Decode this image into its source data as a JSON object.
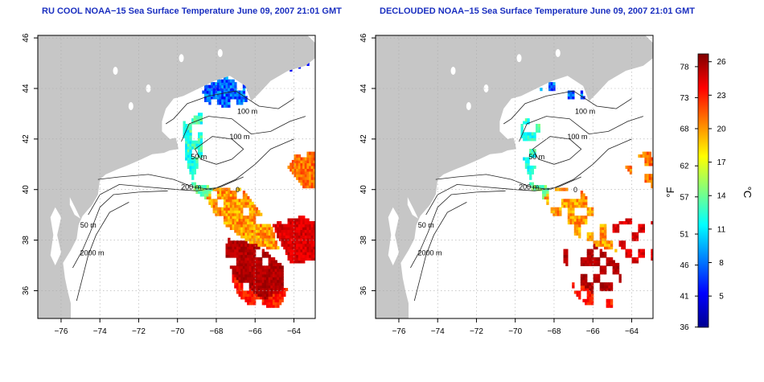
{
  "panels": [
    {
      "title": "RU COOL NOAA−15 Sea Surface Temperature June 09, 2007 21:01 GMT",
      "variant": "all-clouds"
    },
    {
      "title": "DECLOUDED NOAA−15 Sea Surface Temperature June 09, 2007 21:01 GMT",
      "variant": "declouded"
    }
  ],
  "axes": {
    "lon_ticks": [
      "−76",
      "−74",
      "−72",
      "−70",
      "−68",
      "−66",
      "−64"
    ],
    "lon_values": [
      -76,
      -74,
      -72,
      -70,
      -68,
      -66,
      -64
    ],
    "lon_range": [
      -77.2,
      -62.9
    ],
    "lat_ticks": [
      "36",
      "38",
      "40",
      "42",
      "44",
      "46"
    ],
    "lat_values": [
      36,
      38,
      40,
      42,
      44,
      46
    ],
    "lat_range": [
      34.9,
      46.1
    ],
    "grid": "dotted"
  },
  "contour_labels": [
    {
      "text": "100 m",
      "lon": -66.4,
      "lat": 43.0
    },
    {
      "text": "100 m",
      "lon": -66.8,
      "lat": 42.0
    },
    {
      "text": "50 m",
      "lon": -68.9,
      "lat": 41.2
    },
    {
      "text": "200 m",
      "lon": -69.3,
      "lat": 40.0
    },
    {
      "text": "0",
      "lon": -66.9,
      "lat": 39.9
    },
    {
      "text": "50 m",
      "lon": -74.6,
      "lat": 38.5
    },
    {
      "text": "2000 m",
      "lon": -74.4,
      "lat": 37.4
    }
  ],
  "colorbar": {
    "label_f": "°F",
    "label_c": "°C",
    "f_ticks": [
      "36",
      "41",
      "46",
      "51",
      "57",
      "62",
      "68",
      "73",
      "78"
    ],
    "f_values": [
      36,
      41,
      46,
      51,
      57,
      62,
      68,
      73,
      78
    ],
    "c_ticks": [
      "5",
      "8",
      "11",
      "14",
      "17",
      "20",
      "23",
      "26"
    ],
    "c_values": [
      5,
      8,
      11,
      14,
      17,
      20,
      23,
      26
    ],
    "range_c": [
      2.2,
      26.7
    ],
    "colors": [
      "#00008f",
      "#0000ff",
      "#0080ff",
      "#00ffff",
      "#80ff80",
      "#ffff00",
      "#ff8000",
      "#ff0000",
      "#800000"
    ]
  },
  "colors": {
    "land": "#c6c6c6",
    "ocean": "#ffffff",
    "title": "#1a2fc0",
    "contour": "#222222",
    "grid": "#aaaaaa"
  }
}
